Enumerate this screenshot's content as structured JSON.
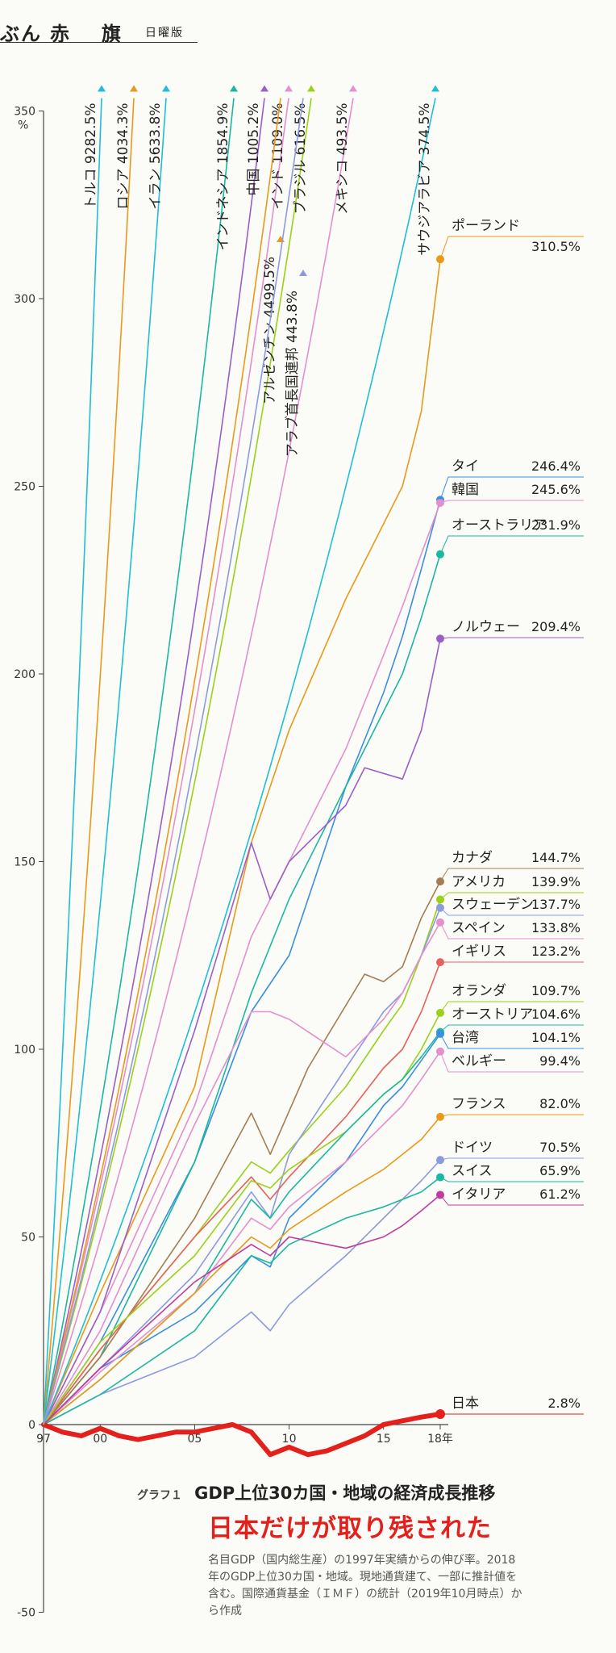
{
  "masthead": {
    "part1": "ぶん",
    "part2": "赤",
    "part3": "旗",
    "edition": "日曜版"
  },
  "caption": {
    "series_no": "グラフ１",
    "title": "GDP上位30カ国・地域の経済成長推移",
    "headline": "日本だけが取り残された",
    "note": "名目GDP（国内総生産）の1997年実績からの伸び率。2018年のGDP上位30カ国・地域。現地通貨建て、一部に推計値を含む。国際通貨基金（ＩＭＦ）の統計（2019年10月時点）から作成"
  },
  "chart_data": {
    "type": "line",
    "title": "GDP上位30カ国・地域の経済成長推移",
    "y_unit": "%",
    "ylim": [
      -50,
      350
    ],
    "yticks": [
      -50,
      0,
      50,
      100,
      150,
      200,
      250,
      300,
      350
    ],
    "xlim": [
      1997,
      2018
    ],
    "xticks": [
      {
        "year": 1997,
        "label": "97"
      },
      {
        "year": 2000,
        "label": "00"
      },
      {
        "year": 2005,
        "label": "05"
      },
      {
        "year": 2010,
        "label": "10"
      },
      {
        "year": 2015,
        "label": "15"
      },
      {
        "year": 2018,
        "label": "18年"
      }
    ],
    "offscale_series": [
      {
        "name": "トルコ",
        "value_2018": "9282.5%",
        "color": "#1fbfd6"
      },
      {
        "name": "ロシア",
        "value_2018": "4034.3%",
        "color": "#e99a1a"
      },
      {
        "name": "イラン",
        "value_2018": "5633.8%",
        "color": "#1fbfd6"
      },
      {
        "name": "インドネシア",
        "value_2018": "1854.9%",
        "color": "#1bb8a0"
      },
      {
        "name": "中国",
        "value_2018": "1005.2%",
        "color": "#9b5fc8"
      },
      {
        "name": "インド",
        "value_2018": "1109.0%",
        "color": "#e48fcf"
      },
      {
        "name": "ブラジル",
        "value_2018": "616.5%",
        "color": "#9bd11a"
      },
      {
        "name": "メキシコ",
        "value_2018": "493.5%",
        "color": "#e48fcf"
      },
      {
        "name": "サウジアラビア",
        "value_2018": "374.5%",
        "color": "#1fbfd6"
      },
      {
        "name": "アルゼンチン",
        "value_2018": "4499.5%",
        "color": "#e99a1a"
      },
      {
        "name": "アラブ首長国連邦",
        "value_2018": "443.8%",
        "color": "#8c9be0"
      }
    ],
    "series": [
      {
        "name": "ポーランド",
        "value_label": "310.5%",
        "color": "#e99a1a",
        "x": [
          1997,
          2000,
          2005,
          2008,
          2010,
          2013,
          2015,
          2016,
          2017,
          2018
        ],
        "y": [
          0,
          35,
          90,
          155,
          185,
          220,
          240,
          250,
          270,
          310.5
        ]
      },
      {
        "name": "タイ",
        "value_label": "246.4%",
        "color": "#3a8fe0",
        "x": [
          1997,
          2000,
          2005,
          2008,
          2010,
          2013,
          2015,
          2016,
          2017,
          2018
        ],
        "y": [
          0,
          22,
          70,
          110,
          125,
          170,
          195,
          210,
          228,
          246.4
        ]
      },
      {
        "name": "韓国",
        "value_label": "245.6%",
        "color": "#e48fcf",
        "x": [
          1997,
          2000,
          2005,
          2008,
          2010,
          2013,
          2015,
          2016,
          2017,
          2018
        ],
        "y": [
          0,
          30,
          85,
          130,
          150,
          180,
          205,
          218,
          232,
          245.6
        ]
      },
      {
        "name": "オーストラリア",
        "value_label": "231.9%",
        "color": "#1bb8a0",
        "x": [
          1997,
          2000,
          2005,
          2008,
          2010,
          2013,
          2015,
          2016,
          2017,
          2018
        ],
        "y": [
          0,
          18,
          70,
          115,
          140,
          170,
          190,
          200,
          215,
          231.9
        ]
      },
      {
        "name": "ノルウェー",
        "value_label": "209.4%",
        "color": "#9b5fc8",
        "x": [
          1997,
          2000,
          2005,
          2008,
          2009,
          2010,
          2013,
          2014,
          2016,
          2017,
          2018
        ],
        "y": [
          0,
          30,
          105,
          155,
          140,
          150,
          165,
          175,
          172,
          185,
          209.4
        ]
      },
      {
        "name": "カナダ",
        "value_label": "144.7%",
        "color": "#a67c52",
        "x": [
          1997,
          2000,
          2005,
          2008,
          2009,
          2011,
          2014,
          2015,
          2016,
          2017,
          2018
        ],
        "y": [
          0,
          18,
          55,
          83,
          72,
          95,
          120,
          118,
          122,
          135,
          144.7
        ]
      },
      {
        "name": "アメリカ",
        "value_label": "139.9%",
        "color": "#9bd11a",
        "x": [
          1997,
          2000,
          2005,
          2008,
          2009,
          2010,
          2013,
          2015,
          2016,
          2017,
          2018
        ],
        "y": [
          0,
          20,
          50,
          70,
          67,
          73,
          90,
          105,
          112,
          125,
          139.9
        ]
      },
      {
        "name": "スウェーデン",
        "value_label": "137.7%",
        "color": "#8c9be0",
        "x": [
          1997,
          2000,
          2005,
          2008,
          2009,
          2010,
          2013,
          2015,
          2016,
          2017,
          2018
        ],
        "y": [
          0,
          15,
          40,
          62,
          55,
          72,
          95,
          110,
          115,
          125,
          137.7
        ]
      },
      {
        "name": "スペイン",
        "value_label": "133.8%",
        "color": "#e48fcf",
        "x": [
          1997,
          2000,
          2005,
          2008,
          2009,
          2010,
          2013,
          2015,
          2016,
          2017,
          2018
        ],
        "y": [
          0,
          25,
          80,
          110,
          110,
          108,
          98,
          108,
          115,
          125,
          133.8
        ]
      },
      {
        "name": "イギリス",
        "value_label": "123.2%",
        "color": "#e8605a",
        "x": [
          1997,
          2000,
          2005,
          2008,
          2009,
          2010,
          2013,
          2015,
          2016,
          2017,
          2018
        ],
        "y": [
          0,
          20,
          50,
          66,
          60,
          66,
          82,
          95,
          100,
          110,
          123.2
        ]
      },
      {
        "name": "オランダ",
        "value_label": "109.7%",
        "color": "#9bd11a",
        "x": [
          1997,
          2000,
          2005,
          2008,
          2009,
          2010,
          2013,
          2015,
          2016,
          2017,
          2018
        ],
        "y": [
          0,
          22,
          45,
          65,
          63,
          68,
          78,
          88,
          92,
          100,
          109.7
        ]
      },
      {
        "name": "オーストリア",
        "value_label": "104.6%",
        "color": "#1bb8a0",
        "x": [
          1997,
          2000,
          2005,
          2008,
          2009,
          2010,
          2013,
          2015,
          2016,
          2017,
          2018
        ],
        "y": [
          0,
          12,
          35,
          60,
          55,
          62,
          78,
          88,
          92,
          98,
          104.6
        ]
      },
      {
        "name": "台湾",
        "value_label": "104.1%",
        "color": "#3a8fe0",
        "x": [
          1997,
          2000,
          2005,
          2008,
          2009,
          2010,
          2013,
          2015,
          2016,
          2017,
          2018
        ],
        "y": [
          0,
          15,
          30,
          45,
          42,
          55,
          70,
          85,
          90,
          97,
          104.1
        ]
      },
      {
        "name": "ベルギー",
        "value_label": "99.4%",
        "color": "#e48fcf",
        "x": [
          1997,
          2000,
          2005,
          2008,
          2009,
          2010,
          2013,
          2015,
          2016,
          2017,
          2018
        ],
        "y": [
          0,
          14,
          35,
          55,
          52,
          58,
          70,
          80,
          85,
          92,
          99.4
        ]
      },
      {
        "name": "フランス",
        "value_label": "82.0%",
        "color": "#e99a1a",
        "x": [
          1997,
          2000,
          2005,
          2008,
          2009,
          2010,
          2013,
          2015,
          2016,
          2017,
          2018
        ],
        "y": [
          0,
          12,
          35,
          50,
          47,
          52,
          62,
          68,
          72,
          76,
          82.0
        ]
      },
      {
        "name": "ドイツ",
        "value_label": "70.5%",
        "color": "#8c9be0",
        "x": [
          1997,
          2000,
          2005,
          2008,
          2009,
          2010,
          2013,
          2015,
          2016,
          2017,
          2018
        ],
        "y": [
          0,
          8,
          18,
          30,
          25,
          32,
          45,
          55,
          60,
          65,
          70.5
        ]
      },
      {
        "name": "スイス",
        "value_label": "65.9%",
        "color": "#1bb8a0",
        "x": [
          1997,
          2000,
          2005,
          2008,
          2009,
          2010,
          2013,
          2015,
          2016,
          2017,
          2018
        ],
        "y": [
          0,
          8,
          25,
          45,
          43,
          48,
          55,
          58,
          60,
          62,
          65.9
        ]
      },
      {
        "name": "イタリア",
        "value_label": "61.2%",
        "color": "#c23a9e",
        "x": [
          1997,
          2000,
          2005,
          2008,
          2009,
          2010,
          2013,
          2015,
          2016,
          2017,
          2018
        ],
        "y": [
          0,
          15,
          38,
          48,
          45,
          50,
          47,
          50,
          53,
          57,
          61.2
        ]
      },
      {
        "name": "日本",
        "value_label": "2.8%",
        "color": "#e4201c",
        "x": [
          1997,
          1998,
          1999,
          2000,
          2001,
          2002,
          2003,
          2004,
          2005,
          2006,
          2007,
          2008,
          2009,
          2010,
          2011,
          2012,
          2013,
          2014,
          2015,
          2016,
          2017,
          2018
        ],
        "y": [
          0,
          -2,
          -3,
          -1,
          -3,
          -4,
          -3,
          -2,
          -2,
          -1,
          0,
          -2,
          -8,
          -6,
          -8,
          -7,
          -5,
          -3,
          0,
          1,
          2,
          2.8
        ]
      }
    ]
  }
}
